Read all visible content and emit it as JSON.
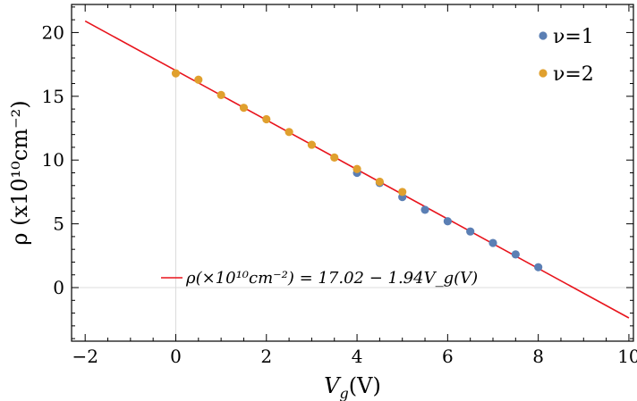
{
  "chart_data": {
    "type": "scatter",
    "xlabel": "V_g(V)",
    "ylabel": "ρ (x10¹⁰cm⁻²)",
    "xlim": [
      -2.3,
      10.1
    ],
    "ylim": [
      -4.2,
      22.2
    ],
    "x_ticks": [
      -2,
      0,
      2,
      4,
      6,
      8,
      10
    ],
    "x_tick_labels": [
      "−2",
      "0",
      "2",
      "4",
      "6",
      "8",
      "10"
    ],
    "y_ticks": [
      0,
      5,
      10,
      15,
      20
    ],
    "y_tick_labels": [
      "0",
      "5",
      "10",
      "15",
      "20"
    ],
    "legend_position": "top-right",
    "grid": "zero lines only",
    "series": [
      {
        "name": "ν=1",
        "color": "#5b7fb4",
        "x": [
          4.0,
          4.5,
          5.0,
          5.5,
          6.0,
          6.5,
          7.0,
          7.5,
          8.0
        ],
        "y": [
          9.0,
          8.2,
          7.1,
          6.1,
          5.2,
          4.4,
          3.5,
          2.6,
          1.6
        ]
      },
      {
        "name": "ν=2",
        "color": "#e0a02e",
        "x": [
          0.0,
          0.5,
          1.0,
          1.5,
          2.0,
          2.5,
          3.0,
          3.5,
          4.0,
          4.5,
          5.0
        ],
        "y": [
          16.8,
          16.3,
          15.1,
          14.1,
          13.2,
          12.2,
          11.2,
          10.2,
          9.3,
          8.3,
          7.5
        ]
      }
    ],
    "fit_line": {
      "label": "ρ(×10¹⁰cm⁻²) = 17.02 − 1.94V_g(V)",
      "intercept": 17.02,
      "slope": -1.94,
      "x_range": [
        -2,
        10
      ],
      "color": "#e8141c"
    }
  }
}
